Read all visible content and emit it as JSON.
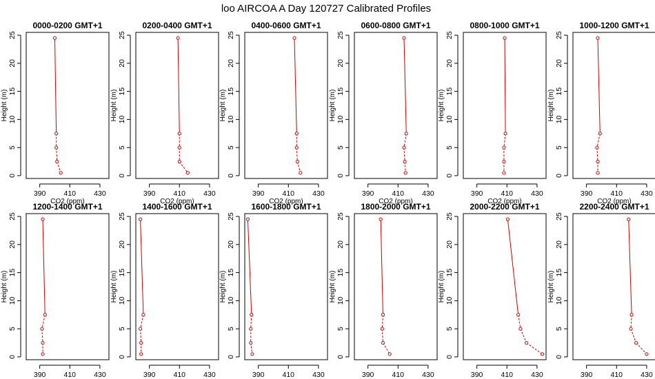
{
  "figure": {
    "title": "loo AIRCOA A  Day 120727  Calibrated Profiles"
  },
  "chart_data": [
    {
      "type": "line",
      "title": "0000-0200 GMT+1",
      "xlabel": "CO2 (ppm)",
      "ylabel": "Height (m)",
      "xlim": [
        381,
        436
      ],
      "ylim": [
        -0.5,
        25.5
      ],
      "xticks": [
        390,
        410,
        430
      ],
      "yticks": [
        0,
        5,
        10,
        15,
        20,
        25
      ],
      "color": "#cc0000",
      "points": [
        {
          "co2": 400,
          "height": 24.5
        },
        {
          "co2": 401,
          "height": 7.5
        },
        {
          "co2": 401,
          "height": 5
        },
        {
          "co2": 401.5,
          "height": 2.5
        },
        {
          "co2": 404,
          "height": 0.5
        }
      ]
    },
    {
      "type": "line",
      "title": "0200-0400 GMT+1",
      "xlabel": "CO2 (ppm)",
      "ylabel": "Height (m)",
      "xlim": [
        381,
        436
      ],
      "ylim": [
        -0.5,
        25.5
      ],
      "xticks": [
        390,
        410,
        430
      ],
      "yticks": [
        0,
        5,
        10,
        15,
        20,
        25
      ],
      "color": "#cc0000",
      "points": [
        {
          "co2": 409,
          "height": 24.5
        },
        {
          "co2": 410,
          "height": 7.5
        },
        {
          "co2": 410,
          "height": 5
        },
        {
          "co2": 410,
          "height": 2.5
        },
        {
          "co2": 415.5,
          "height": 0.5
        }
      ]
    },
    {
      "type": "line",
      "title": "0400-0600 GMT+1",
      "xlabel": "CO2 (ppm)",
      "ylabel": "Height (m)",
      "xlim": [
        381,
        436
      ],
      "ylim": [
        -0.5,
        25.5
      ],
      "xticks": [
        390,
        410,
        430
      ],
      "yticks": [
        0,
        5,
        10,
        15,
        20,
        25
      ],
      "color": "#cc0000",
      "points": [
        {
          "co2": 414,
          "height": 24.5
        },
        {
          "co2": 415.5,
          "height": 7.5
        },
        {
          "co2": 415.5,
          "height": 5
        },
        {
          "co2": 416,
          "height": 2.5
        },
        {
          "co2": 418,
          "height": 0.5
        }
      ]
    },
    {
      "type": "line",
      "title": "0600-0800 GMT+1",
      "xlabel": "CO2 (ppm)",
      "ylabel": "Height (m)",
      "xlim": [
        381,
        436
      ],
      "ylim": [
        -0.5,
        25.5
      ],
      "xticks": [
        390,
        410,
        430
      ],
      "yticks": [
        0,
        5,
        10,
        15,
        20,
        25
      ],
      "color": "#cc0000",
      "points": [
        {
          "co2": 414,
          "height": 24.5
        },
        {
          "co2": 415.5,
          "height": 7.5
        },
        {
          "co2": 414,
          "height": 5
        },
        {
          "co2": 414.5,
          "height": 2.5
        },
        {
          "co2": 415,
          "height": 0.5
        }
      ]
    },
    {
      "type": "line",
      "title": "0800-1000 GMT+1",
      "xlabel": "CO2 (ppm)",
      "ylabel": "Height (m)",
      "xlim": [
        381,
        436
      ],
      "ylim": [
        -0.5,
        25.5
      ],
      "xticks": [
        390,
        410,
        430
      ],
      "yticks": [
        0,
        5,
        10,
        15,
        20,
        25
      ],
      "color": "#cc0000",
      "points": [
        {
          "co2": 408.5,
          "height": 24.5
        },
        {
          "co2": 409,
          "height": 7.5
        },
        {
          "co2": 408,
          "height": 5
        },
        {
          "co2": 408,
          "height": 2.5
        },
        {
          "co2": 408,
          "height": 0.5
        }
      ]
    },
    {
      "type": "line",
      "title": "1000-1200 GMT+1",
      "xlabel": "CO2 (ppm)",
      "ylabel": "Height (m)",
      "xlim": [
        381,
        436
      ],
      "ylim": [
        -0.5,
        25.5
      ],
      "xticks": [
        390,
        410,
        430
      ],
      "yticks": [
        0,
        5,
        10,
        15,
        20,
        25
      ],
      "color": "#cc0000",
      "points": [
        {
          "co2": 397.5,
          "height": 24.5
        },
        {
          "co2": 399,
          "height": 7.5
        },
        {
          "co2": 397,
          "height": 5
        },
        {
          "co2": 397.5,
          "height": 2.5
        },
        {
          "co2": 397.5,
          "height": 0.5
        }
      ]
    },
    {
      "type": "line",
      "title": "1200-1400 GMT+1",
      "xlabel": "CO2 (ppm)",
      "ylabel": "Height (m)",
      "xlim": [
        381,
        436
      ],
      "ylim": [
        -0.5,
        25.5
      ],
      "xticks": [
        390,
        410,
        430
      ],
      "yticks": [
        0,
        5,
        10,
        15,
        20,
        25
      ],
      "color": "#cc0000",
      "points": [
        {
          "co2": 392,
          "height": 24.5
        },
        {
          "co2": 393.5,
          "height": 7.5
        },
        {
          "co2": 391.5,
          "height": 5
        },
        {
          "co2": 392,
          "height": 2.5
        },
        {
          "co2": 392,
          "height": 0.5
        }
      ]
    },
    {
      "type": "line",
      "title": "1400-1600 GMT+1",
      "xlabel": "CO2 (ppm)",
      "ylabel": "Height (m)",
      "xlim": [
        381,
        436
      ],
      "ylim": [
        -0.5,
        25.5
      ],
      "xticks": [
        390,
        410,
        430
      ],
      "yticks": [
        0,
        5,
        10,
        15,
        20,
        25
      ],
      "color": "#cc0000",
      "points": [
        {
          "co2": 384,
          "height": 24.5
        },
        {
          "co2": 386,
          "height": 7.5
        },
        {
          "co2": 384,
          "height": 5
        },
        {
          "co2": 384.5,
          "height": 2.5
        },
        {
          "co2": 384.5,
          "height": 0.5
        }
      ]
    },
    {
      "type": "line",
      "title": "1600-1800 GMT+1",
      "xlabel": "CO2 (ppm)",
      "ylabel": "Height (m)",
      "xlim": [
        381,
        436
      ],
      "ylim": [
        -0.5,
        25.5
      ],
      "xticks": [
        390,
        410,
        430
      ],
      "yticks": [
        0,
        5,
        10,
        15,
        20,
        25
      ],
      "color": "#cc0000",
      "points": [
        {
          "co2": 383,
          "height": 24.5
        },
        {
          "co2": 385.5,
          "height": 7.5
        },
        {
          "co2": 385,
          "height": 5
        },
        {
          "co2": 385,
          "height": 2.5
        },
        {
          "co2": 386,
          "height": 0.5
        }
      ]
    },
    {
      "type": "line",
      "title": "1800-2000 GMT+1",
      "xlabel": "CO2 (ppm)",
      "ylabel": "Height (m)",
      "xlim": [
        381,
        436
      ],
      "ylim": [
        -0.5,
        25.5
      ],
      "xticks": [
        390,
        410,
        430
      ],
      "yticks": [
        0,
        5,
        10,
        15,
        20,
        25
      ],
      "color": "#cc0000",
      "points": [
        {
          "co2": 398.5,
          "height": 24.5
        },
        {
          "co2": 400,
          "height": 7.5
        },
        {
          "co2": 399.5,
          "height": 5
        },
        {
          "co2": 400,
          "height": 2.5
        },
        {
          "co2": 404.5,
          "height": 0.5
        }
      ]
    },
    {
      "type": "line",
      "title": "2000-2200 GMT+1",
      "xlabel": "CO2 (ppm)",
      "ylabel": "Height (m)",
      "xlim": [
        381,
        436
      ],
      "ylim": [
        -0.5,
        25.5
      ],
      "xticks": [
        390,
        410,
        430
      ],
      "yticks": [
        0,
        5,
        10,
        15,
        20,
        25
      ],
      "color": "#cc0000",
      "points": [
        {
          "co2": 410.5,
          "height": 24.5
        },
        {
          "co2": 417.5,
          "height": 7.5
        },
        {
          "co2": 419,
          "height": 5
        },
        {
          "co2": 423,
          "height": 2.5
        },
        {
          "co2": 433.5,
          "height": 0.5
        }
      ]
    },
    {
      "type": "line",
      "title": "2200-2400 GMT+1",
      "xlabel": "CO2 (ppm)",
      "ylabel": "Height (m)",
      "xlim": [
        381,
        436
      ],
      "ylim": [
        -0.5,
        25.5
      ],
      "xticks": [
        390,
        410,
        430
      ],
      "yticks": [
        0,
        5,
        10,
        15,
        20,
        25
      ],
      "color": "#cc0000",
      "points": [
        {
          "co2": 418,
          "height": 24.5
        },
        {
          "co2": 420,
          "height": 7.5
        },
        {
          "co2": 419.5,
          "height": 5
        },
        {
          "co2": 423,
          "height": 2.5
        },
        {
          "co2": 430,
          "height": 0.5
        }
      ]
    }
  ]
}
